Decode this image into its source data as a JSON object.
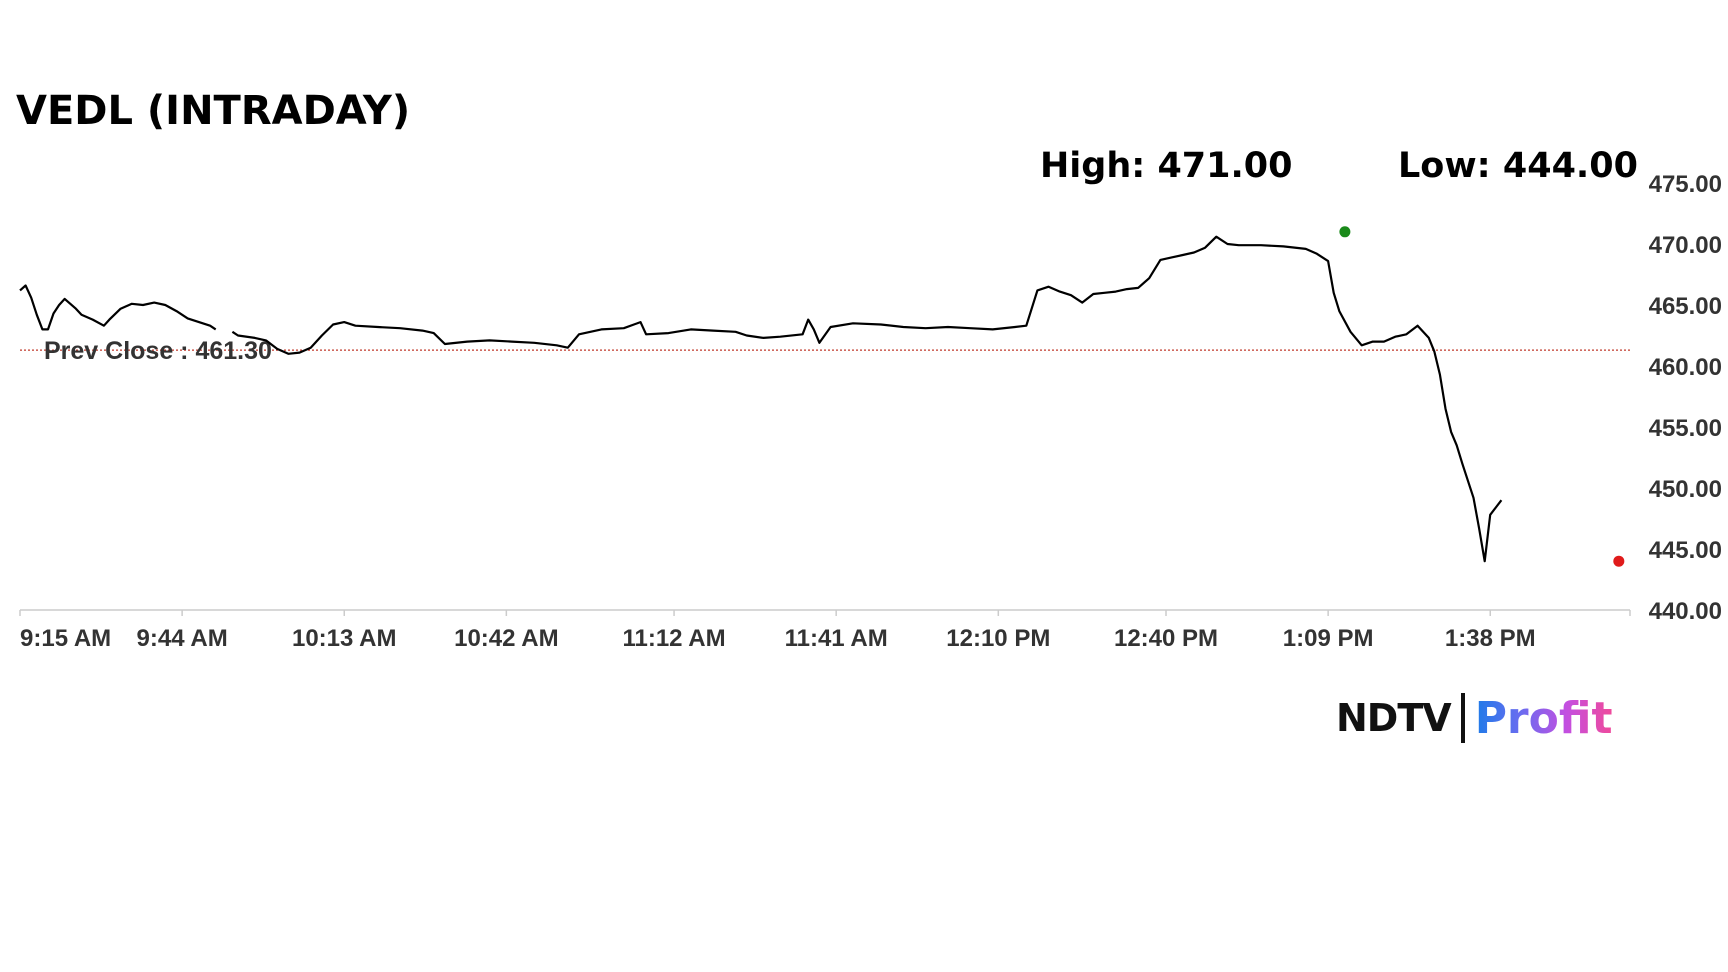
{
  "title": "VEDL (INTRADAY)",
  "high_label": "High: 471.00",
  "low_label": "Low: 444.00",
  "prev_close_label": "Prev Close : 461.30",
  "logo": {
    "left": "NDTV",
    "right": "Profit"
  },
  "colors": {
    "line": "#000000",
    "prev_close": "#c0392b",
    "high_marker": "#1a8a1a",
    "low_marker": "#e01b1b",
    "axis": "#cccccc"
  },
  "chart_data": {
    "type": "line",
    "title": "VEDL (INTRADAY)",
    "xlabel": "",
    "ylabel": "",
    "ylim": [
      440,
      475
    ],
    "y_ticks": [
      440,
      445,
      450,
      455,
      460,
      465,
      470,
      475
    ],
    "y_tick_labels": [
      "440.00",
      "445.00",
      "450.00",
      "455.00",
      "460.00",
      "465.00",
      "470.00",
      "475.00"
    ],
    "x_range": [
      "9:15 AM",
      "2:03 PM"
    ],
    "x_ticks": [
      "9:15 AM",
      "9:44 AM",
      "10:13 AM",
      "10:42 AM",
      "11:12 AM",
      "11:41 AM",
      "12:10 PM",
      "12:40 PM",
      "1:09 PM",
      "1:38 PM"
    ],
    "prev_close": 461.3,
    "high": {
      "time": "1:12 PM",
      "value": 471.0
    },
    "low": {
      "time": "2:01 PM",
      "value": 444.0
    },
    "grid": false,
    "series": [
      {
        "points": [
          [
            "9:15 AM",
            466.2
          ],
          [
            "9:16 AM",
            466.6
          ],
          [
            "9:17 AM",
            465.6
          ],
          [
            "9:18 AM",
            464.2
          ],
          [
            "9:19 AM",
            463.0
          ],
          [
            "9:20 AM",
            463.0
          ],
          [
            "9:21 AM",
            464.3
          ],
          [
            "9:22 AM",
            465.0
          ],
          [
            "9:23 AM",
            465.5
          ],
          [
            "9:25 AM",
            464.7
          ],
          [
            "9:26 AM",
            464.2
          ],
          [
            "9:28 AM",
            463.8
          ],
          [
            "9:30 AM",
            463.3
          ],
          [
            "9:31 AM",
            463.8
          ],
          [
            "9:33 AM",
            464.7
          ],
          [
            "9:35 AM",
            465.1
          ],
          [
            "9:37 AM",
            465.0
          ],
          [
            "9:39 AM",
            465.2
          ],
          [
            "9:41 AM",
            465.0
          ],
          [
            "9:43 AM",
            464.5
          ],
          [
            "9:45 AM",
            463.9
          ],
          [
            "9:47 AM",
            463.6
          ],
          [
            "9:49 AM",
            463.3
          ],
          [
            "9:50 AM",
            463.0
          ],
          [
            "9:52 AM",
            null
          ],
          [
            "9:53 AM",
            462.8
          ],
          [
            "9:54 AM",
            462.5
          ],
          [
            "9:57 AM",
            462.3
          ],
          [
            "9:59 AM",
            462.1
          ],
          [
            "10:01 AM",
            461.4
          ],
          [
            "10:03 AM",
            461.0
          ],
          [
            "10:05 AM",
            461.1
          ],
          [
            "10:07 AM",
            461.5
          ],
          [
            "10:09 AM",
            462.5
          ],
          [
            "10:11 AM",
            463.4
          ],
          [
            "10:13 AM",
            463.6
          ],
          [
            "10:15 AM",
            463.3
          ],
          [
            "10:19 AM",
            463.2
          ],
          [
            "10:23 AM",
            463.1
          ],
          [
            "10:27 AM",
            462.9
          ],
          [
            "10:29 AM",
            462.7
          ],
          [
            "10:31 AM",
            461.8
          ],
          [
            "10:35 AM",
            462.0
          ],
          [
            "10:39 AM",
            462.1
          ],
          [
            "10:43 AM",
            462.0
          ],
          [
            "10:47 AM",
            461.9
          ],
          [
            "10:51 AM",
            461.7
          ],
          [
            "10:53 AM",
            461.5
          ],
          [
            "10:55 AM",
            462.6
          ],
          [
            "10:59 AM",
            463.0
          ],
          [
            "11:03 AM",
            463.1
          ],
          [
            "11:06 AM",
            463.6
          ],
          [
            "11:07 AM",
            462.6
          ],
          [
            "11:11 AM",
            462.7
          ],
          [
            "11:15 AM",
            463.0
          ],
          [
            "11:19 AM",
            462.9
          ],
          [
            "11:23 AM",
            462.8
          ],
          [
            "11:25 AM",
            462.5
          ],
          [
            "11:28 AM",
            462.3
          ],
          [
            "11:31 AM",
            462.4
          ],
          [
            "11:35 AM",
            462.6
          ],
          [
            "11:36 AM",
            463.8
          ],
          [
            "11:37 AM",
            463.0
          ],
          [
            "11:38 AM",
            461.9
          ],
          [
            "11:40 AM",
            463.2
          ],
          [
            "11:44 AM",
            463.5
          ],
          [
            "11:49 AM",
            463.4
          ],
          [
            "11:53 AM",
            463.2
          ],
          [
            "11:57 AM",
            463.1
          ],
          [
            "12:01 PM",
            463.2
          ],
          [
            "12:05 PM",
            463.1
          ],
          [
            "12:09 PM",
            463.0
          ],
          [
            "12:13 PM",
            463.2
          ],
          [
            "12:15 PM",
            463.3
          ],
          [
            "12:17 PM",
            466.2
          ],
          [
            "12:19 PM",
            466.5
          ],
          [
            "12:21 PM",
            466.1
          ],
          [
            "12:23 PM",
            465.8
          ],
          [
            "12:25 PM",
            465.2
          ],
          [
            "12:27 PM",
            465.9
          ],
          [
            "12:29 PM",
            466.0
          ],
          [
            "12:31 PM",
            466.1
          ],
          [
            "12:33 PM",
            466.3
          ],
          [
            "12:35 PM",
            466.4
          ],
          [
            "12:37 PM",
            467.2
          ],
          [
            "12:39 PM",
            468.7
          ],
          [
            "12:41 PM",
            468.9
          ],
          [
            "12:43 PM",
            469.1
          ],
          [
            "12:45 PM",
            469.3
          ],
          [
            "12:47 PM",
            469.7
          ],
          [
            "12:49 PM",
            470.6
          ],
          [
            "12:51 PM",
            470.0
          ],
          [
            "12:53 PM",
            469.9
          ],
          [
            "12:57 PM",
            469.9
          ],
          [
            "1:01 PM",
            469.8
          ],
          [
            "1:05 PM",
            469.6
          ],
          [
            "1:07 PM",
            469.2
          ],
          [
            "1:09 PM",
            468.6
          ],
          [
            "1:10 PM",
            466.0
          ],
          [
            "1:11 PM",
            464.5
          ],
          [
            "1:13 PM",
            462.8
          ],
          [
            "1:15 PM",
            461.7
          ],
          [
            "1:17 PM",
            462.0
          ],
          [
            "1:19 PM",
            462.0
          ],
          [
            "1:21 PM",
            462.4
          ],
          [
            "1:23 PM",
            462.6
          ],
          [
            "1:25 PM",
            463.3
          ],
          [
            "1:27 PM",
            462.3
          ],
          [
            "1:28 PM",
            461.2
          ],
          [
            "1:29 PM",
            459.3
          ],
          [
            "1:30 PM",
            456.5
          ],
          [
            "1:31 PM",
            454.6
          ],
          [
            "1:32 PM",
            453.5
          ],
          [
            "1:33 PM",
            452.0
          ],
          [
            "1:35 PM",
            449.2
          ],
          [
            "1:36 PM",
            446.7
          ],
          [
            "1:37 PM",
            444.0
          ],
          [
            "1:38 PM",
            447.8
          ],
          [
            "1:39 PM",
            448.4
          ],
          [
            "1:40 PM",
            449.0
          ]
        ]
      }
    ]
  }
}
